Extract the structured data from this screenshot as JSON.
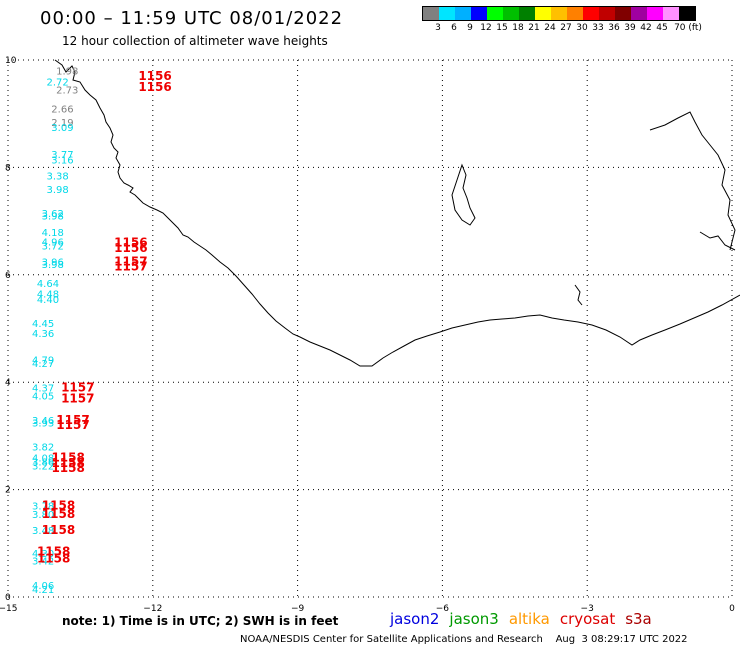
{
  "title": "00:00 – 11:59 UTC 08/01/2022",
  "subtitle": "12 hour collection of altimeter wave heights",
  "colorbar": {
    "labels": [
      "3",
      "6",
      "9",
      "12",
      "15",
      "18",
      "21",
      "24",
      "27",
      "30",
      "33",
      "36",
      "39",
      "42",
      "45",
      "70 (ft)"
    ],
    "colors": [
      "#808080",
      "#00e5ff",
      "#00b0ff",
      "#0000ff",
      "#00ff00",
      "#00c000",
      "#008000",
      "#ffff00",
      "#ffc000",
      "#ff8000",
      "#ff0000",
      "#c00000",
      "#800000",
      "#a000a0",
      "#ff00ff",
      "#ff90ff",
      "#000000"
    ]
  },
  "axes": {
    "x_ticks": [
      "−15",
      "−12",
      "−9",
      "−6",
      "−3",
      "0"
    ],
    "y_ticks": [
      "0",
      "2",
      "4",
      "6",
      "8",
      "10"
    ]
  },
  "observations": [
    {
      "lon": -14.5,
      "lat": 9.8,
      "swh": "1.98",
      "color": "#808080"
    },
    {
      "lon": -14.7,
      "lat": 9.6,
      "swh": "2.72",
      "color": "#00d8e8"
    },
    {
      "lon": -14.5,
      "lat": 9.45,
      "swh": "2.73",
      "color": "#808080"
    },
    {
      "lon": -14.6,
      "lat": 9.1,
      "swh": "2.66",
      "color": "#808080"
    },
    {
      "lon": -14.6,
      "lat": 8.85,
      "swh": "2.19",
      "color": "#808080"
    },
    {
      "lon": -14.6,
      "lat": 8.75,
      "swh": "3.09",
      "color": "#00d8e8"
    },
    {
      "lon": -14.6,
      "lat": 8.25,
      "swh": "3.77",
      "color": "#00d8e8"
    },
    {
      "lon": -14.6,
      "lat": 8.15,
      "swh": "3.16",
      "color": "#00d8e8"
    },
    {
      "lon": -14.7,
      "lat": 7.85,
      "swh": "3.38",
      "color": "#00d8e8"
    },
    {
      "lon": -14.7,
      "lat": 7.6,
      "swh": "3.98",
      "color": "#00d8e8"
    },
    {
      "lon": -14.8,
      "lat": 7.15,
      "swh": "3.62",
      "color": "#00d8e8"
    },
    {
      "lon": -14.8,
      "lat": 7.1,
      "swh": "3.98",
      "color": "#00d8e8"
    },
    {
      "lon": -14.8,
      "lat": 6.8,
      "swh": "4.18",
      "color": "#00d8e8"
    },
    {
      "lon": -14.8,
      "lat": 6.62,
      "swh": "4.96",
      "color": "#00d8e8"
    },
    {
      "lon": -14.8,
      "lat": 6.55,
      "swh": "3.72",
      "color": "#00d8e8"
    },
    {
      "lon": -14.8,
      "lat": 6.25,
      "swh": "3.96",
      "color": "#00d8e8"
    },
    {
      "lon": -14.8,
      "lat": 6.2,
      "swh": "3.98",
      "color": "#00d8e8"
    },
    {
      "lon": -14.9,
      "lat": 5.85,
      "swh": "4.64",
      "color": "#00d8e8"
    },
    {
      "lon": -14.9,
      "lat": 5.65,
      "swh": "4.48",
      "color": "#00d8e8"
    },
    {
      "lon": -14.9,
      "lat": 5.55,
      "swh": "4.40",
      "color": "#00d8e8"
    },
    {
      "lon": -15.0,
      "lat": 5.1,
      "swh": "4.45",
      "color": "#00d8e8"
    },
    {
      "lon": -15.0,
      "lat": 4.92,
      "swh": "4.36",
      "color": "#00d8e8"
    },
    {
      "lon": -15.0,
      "lat": 4.42,
      "swh": "4.79",
      "color": "#00d8e8"
    },
    {
      "lon": -15.0,
      "lat": 4.36,
      "swh": "4.27",
      "color": "#00d8e8"
    },
    {
      "lon": -15.0,
      "lat": 3.9,
      "swh": "4.37",
      "color": "#00d8e8"
    },
    {
      "lon": -15.0,
      "lat": 3.75,
      "swh": "4.05",
      "color": "#00d8e8"
    },
    {
      "lon": -15.0,
      "lat": 3.3,
      "swh": "3.46",
      "color": "#00d8e8"
    },
    {
      "lon": -15.0,
      "lat": 3.25,
      "swh": "3.93",
      "color": "#00d8e8"
    },
    {
      "lon": -15.0,
      "lat": 2.8,
      "swh": "3.82",
      "color": "#00d8e8"
    },
    {
      "lon": -15.0,
      "lat": 2.6,
      "swh": "4.08",
      "color": "#00d8e8"
    },
    {
      "lon": -15.0,
      "lat": 2.52,
      "swh": "3.86",
      "color": "#00d8e8"
    },
    {
      "lon": -15.0,
      "lat": 2.45,
      "swh": "3.22",
      "color": "#00d8e8"
    },
    {
      "lon": -15.0,
      "lat": 1.7,
      "swh": "3.78",
      "color": "#00d8e8"
    },
    {
      "lon": -15.0,
      "lat": 1.55,
      "swh": "3.80",
      "color": "#00d8e8"
    },
    {
      "lon": -15.0,
      "lat": 1.25,
      "swh": "3.48",
      "color": "#00d8e8"
    },
    {
      "lon": -15.0,
      "lat": 0.82,
      "swh": "4.30",
      "color": "#00d8e8"
    },
    {
      "lon": -15.0,
      "lat": 0.68,
      "swh": "3.42",
      "color": "#00d8e8"
    },
    {
      "lon": -15.0,
      "lat": 0.22,
      "swh": "4.06",
      "color": "#00d8e8"
    },
    {
      "lon": -15.0,
      "lat": 0.15,
      "swh": "4.21",
      "color": "#00d8e8"
    }
  ],
  "time_labels": [
    {
      "lon": -12.3,
      "lat": 9.7,
      "text": "1156"
    },
    {
      "lon": -12.3,
      "lat": 9.5,
      "text": "1156"
    },
    {
      "lon": -12.8,
      "lat": 6.6,
      "text": "1156"
    },
    {
      "lon": -12.8,
      "lat": 6.5,
      "text": "1156"
    },
    {
      "lon": -12.8,
      "lat": 6.25,
      "text": "1157"
    },
    {
      "lon": -12.8,
      "lat": 6.15,
      "text": "1157"
    },
    {
      "lon": -13.9,
      "lat": 3.9,
      "text": "1157"
    },
    {
      "lon": -13.9,
      "lat": 3.7,
      "text": "1157"
    },
    {
      "lon": -14.0,
      "lat": 3.3,
      "text": "1157"
    },
    {
      "lon": -14.0,
      "lat": 3.2,
      "text": "1157"
    },
    {
      "lon": -14.1,
      "lat": 2.6,
      "text": "1158"
    },
    {
      "lon": -14.1,
      "lat": 2.5,
      "text": "1158"
    },
    {
      "lon": -14.1,
      "lat": 2.4,
      "text": "1158"
    },
    {
      "lon": -14.3,
      "lat": 1.7,
      "text": "1158"
    },
    {
      "lon": -14.3,
      "lat": 1.55,
      "text": "1158"
    },
    {
      "lon": -14.3,
      "lat": 1.25,
      "text": "1158"
    },
    {
      "lon": -14.4,
      "lat": 0.85,
      "text": "1158"
    },
    {
      "lon": -14.4,
      "lat": 0.72,
      "text": "1158"
    }
  ],
  "time_color": "#ee0000",
  "note": "note:  1) Time is in UTC;  2) SWH is in feet",
  "satellites": [
    {
      "name": "jason2",
      "color": "#0000dd"
    },
    {
      "name": "jason3",
      "color": "#009900"
    },
    {
      "name": "altika",
      "color": "#ff9900"
    },
    {
      "name": "cryosat",
      "color": "#dd0000"
    },
    {
      "name": "s3a",
      "color": "#aa0000"
    }
  ],
  "footer": "NOAA/NESDIS Center for Satellite Applications and Research    Aug  3 08:29:17 UTC 2022"
}
